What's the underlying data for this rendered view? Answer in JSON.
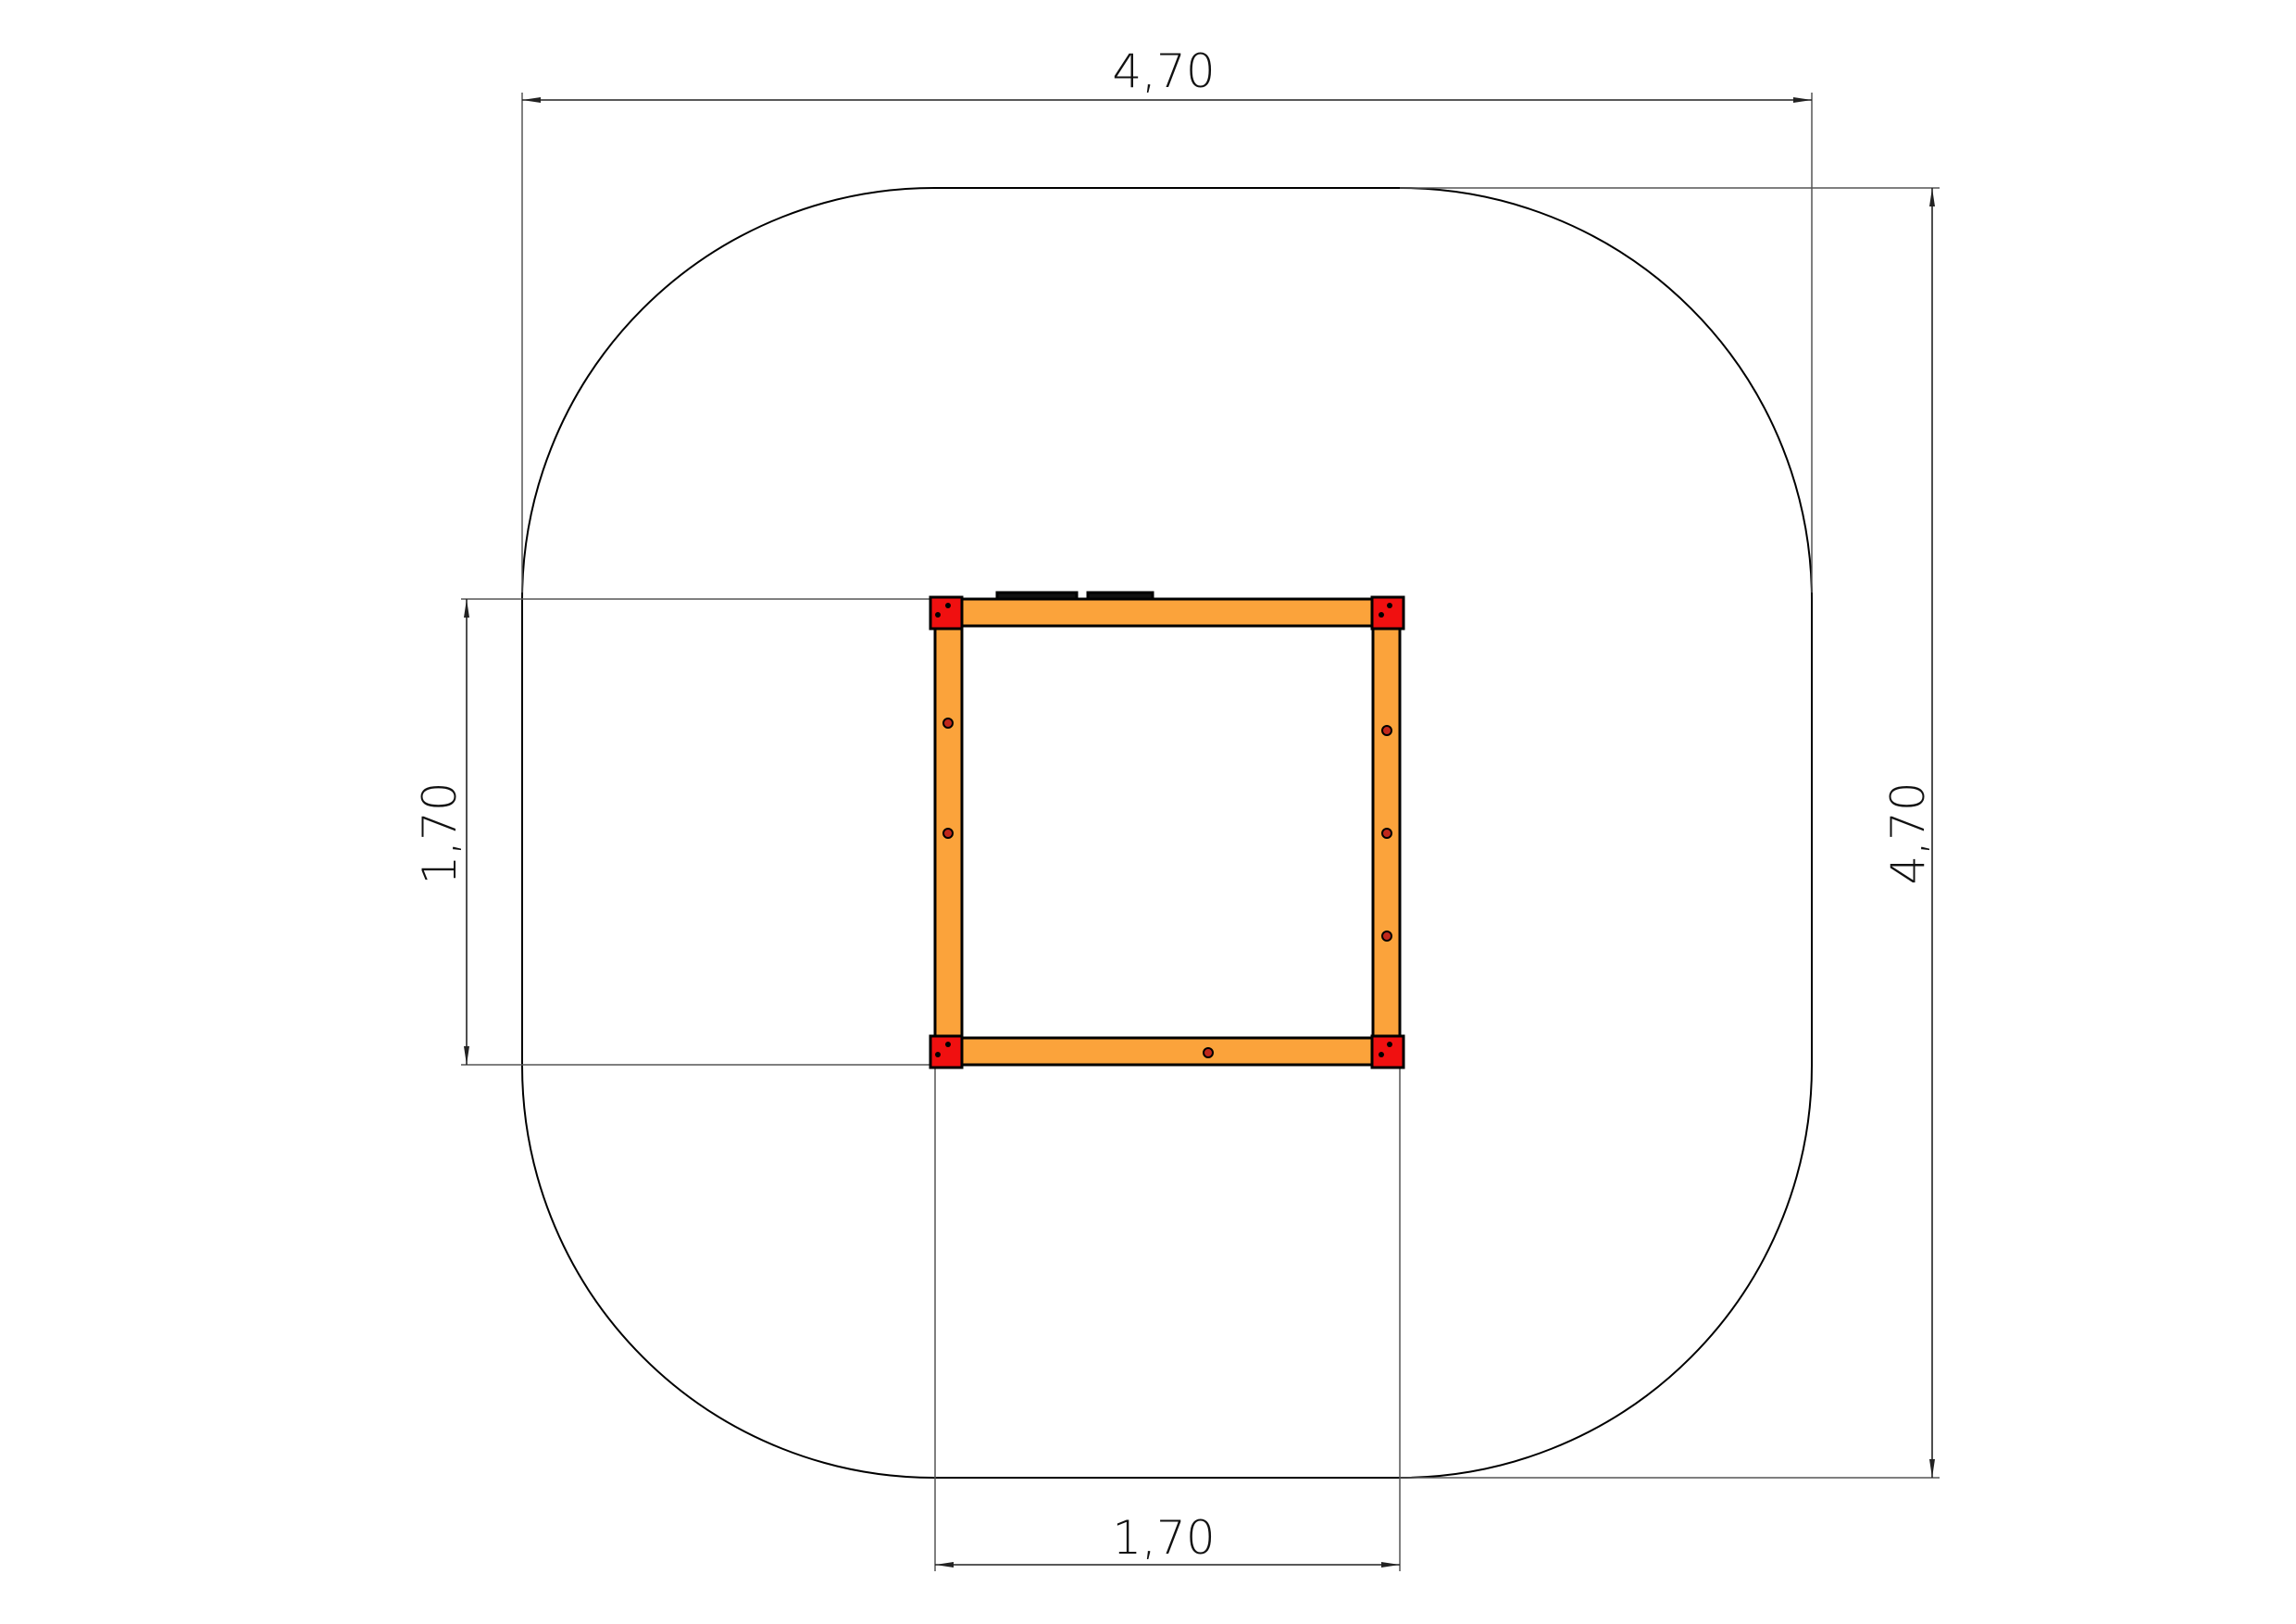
{
  "dimensions": {
    "overall_width": "4,70",
    "overall_depth": "4,70",
    "frame_width": "1,70",
    "frame_depth": "1,70"
  },
  "colors": {
    "frame_beam": "#FBA33B",
    "corner_block": "#F01010",
    "outline": "#000000"
  }
}
